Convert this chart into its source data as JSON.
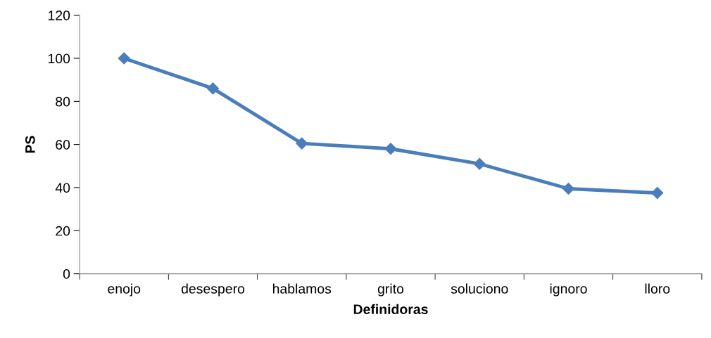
{
  "chart_data": {
    "type": "line",
    "xlabel": "Definidoras",
    "ylabel": "PS",
    "categories": [
      "enojo",
      "desespero",
      "hablamos",
      "grito",
      "soluciono",
      "ignoro",
      "lloro"
    ],
    "series": [
      {
        "color": "#4a7ebb",
        "values": [
          100,
          86,
          60.5,
          58,
          51,
          39.5,
          37.5
        ]
      }
    ],
    "ylim": [
      0,
      120
    ],
    "yticks": [
      0,
      20,
      40,
      60,
      80,
      100,
      120
    ],
    "grid": false,
    "marker": "diamond",
    "line_style": "solid"
  }
}
